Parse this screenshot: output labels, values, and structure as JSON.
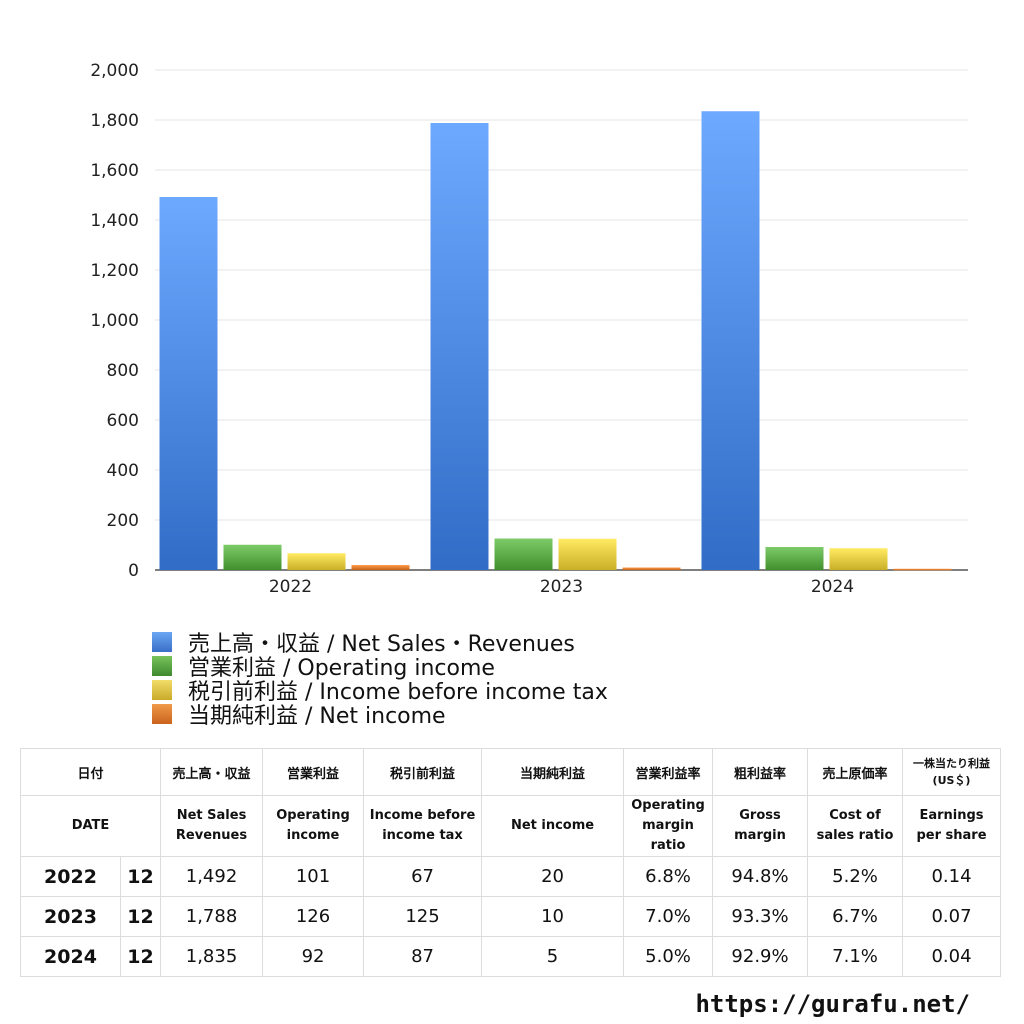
{
  "chart_data": {
    "type": "bar",
    "categories": [
      "2022",
      "2023",
      "2024"
    ],
    "series": [
      {
        "name": "売上高・収益 / Net Sales・Revenues",
        "values": [
          1492,
          1788,
          1835
        ],
        "color": "#4a86df"
      },
      {
        "name": "営業利益 / Operating income",
        "values": [
          101,
          126,
          92
        ],
        "color": "#5aa845"
      },
      {
        "name": "税引前利益 / Income before income tax",
        "values": [
          67,
          125,
          87
        ],
        "color": "#e2c840"
      },
      {
        "name": "当期純利益 / Net income",
        "values": [
          20,
          10,
          5
        ],
        "color": "#e07b2c"
      }
    ],
    "ylim": [
      0,
      2000
    ],
    "yticks": [
      "0",
      "200",
      "400",
      "600",
      "800",
      "1,000",
      "1,200",
      "1,400",
      "1,600",
      "1,800",
      "2,000"
    ],
    "grid": true,
    "legend": "bottom-left",
    "title": "",
    "xlabel": "",
    "ylabel": ""
  },
  "table": {
    "header_jp": [
      "日付",
      "売上高・収益",
      "営業利益",
      "税引前利益",
      "当期純利益",
      "営業利益率",
      "粗利益率",
      "売上原価率",
      "一株当たり利益\n(US＄)"
    ],
    "header_en": [
      "DATE",
      "Net Sales\nRevenues",
      "Operating\nincome",
      "Income before\nincome tax",
      "Net income",
      "Operating\nmargin\nratio",
      "Gross\nmargin",
      "Cost of\nsales ratio",
      "Earnings\nper share"
    ],
    "rows": [
      {
        "year": "2022",
        "month": "12",
        "values": [
          "1,492",
          "101",
          "67",
          "20",
          "6.8%",
          "94.8%",
          "5.2%",
          "0.14"
        ]
      },
      {
        "year": "2023",
        "month": "12",
        "values": [
          "1,788",
          "126",
          "125",
          "10",
          "7.0%",
          "93.3%",
          "6.7%",
          "0.07"
        ]
      },
      {
        "year": "2024",
        "month": "12",
        "values": [
          "1,835",
          "92",
          "87",
          "5",
          "5.0%",
          "92.9%",
          "7.1%",
          "0.04"
        ]
      }
    ]
  },
  "footer": {
    "url": "https://gurafu.net/"
  }
}
